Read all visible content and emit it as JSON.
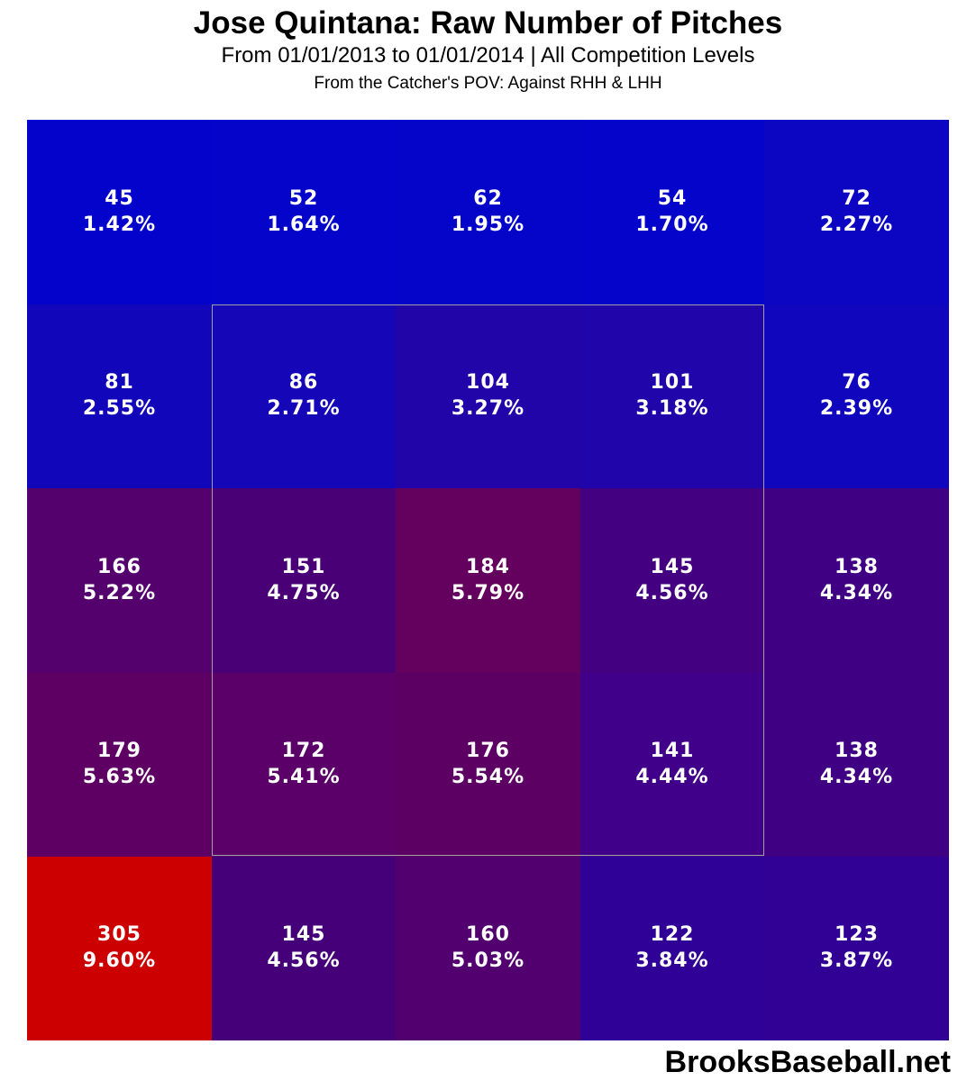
{
  "title": "Jose Quintana: Raw Number of Pitches",
  "subtitle": "From 01/01/2013 to 01/01/2014 | All Competition Levels",
  "subtitle2": "From the Catcher's POV:   Against RHH & LHH",
  "watermark": "BrooksBaseball.net",
  "chart_data": {
    "type": "heatmap",
    "rows": 5,
    "cols": 5,
    "strike_zone": "inner 3x3 cells outlined in gray",
    "cells": [
      [
        {
          "count": "45",
          "pct": "1.42%",
          "color": "#0303cc"
        },
        {
          "count": "52",
          "pct": "1.64%",
          "color": "#0404cb"
        },
        {
          "count": "62",
          "pct": "1.95%",
          "color": "#0505ca"
        },
        {
          "count": "54",
          "pct": "1.70%",
          "color": "#0404cb"
        },
        {
          "count": "72",
          "pct": "2.27%",
          "color": "#0c06c2"
        }
      ],
      [
        {
          "count": "81",
          "pct": "2.55%",
          "color": "#1206ba"
        },
        {
          "count": "86",
          "pct": "2.71%",
          "color": "#1506b8"
        },
        {
          "count": "104",
          "pct": "3.27%",
          "color": "#2205a8"
        },
        {
          "count": "101",
          "pct": "3.18%",
          "color": "#2005aa"
        },
        {
          "count": "76",
          "pct": "2.39%",
          "color": "#0f06bd"
        }
      ],
      [
        {
          "count": "166",
          "pct": "5.22%",
          "color": "#54016e"
        },
        {
          "count": "151",
          "pct": "4.75%",
          "color": "#490077"
        },
        {
          "count": "184",
          "pct": "5.79%",
          "color": "#64005e"
        },
        {
          "count": "145",
          "pct": "4.56%",
          "color": "#430080"
        },
        {
          "count": "138",
          "pct": "4.34%",
          "color": "#3f0083"
        }
      ],
      [
        {
          "count": "179",
          "pct": "5.63%",
          "color": "#5e0063"
        },
        {
          "count": "172",
          "pct": "5.41%",
          "color": "#5a0068"
        },
        {
          "count": "176",
          "pct": "5.54%",
          "color": "#5d0064"
        },
        {
          "count": "141",
          "pct": "4.44%",
          "color": "#41008a"
        },
        {
          "count": "138",
          "pct": "4.34%",
          "color": "#3f0083"
        }
      ],
      [
        {
          "count": "305",
          "pct": "9.60%",
          "color": "#cc0000"
        },
        {
          "count": "145",
          "pct": "4.56%",
          "color": "#450079"
        },
        {
          "count": "160",
          "pct": "5.03%",
          "color": "#520070"
        },
        {
          "count": "122",
          "pct": "3.84%",
          "color": "#2f0196"
        },
        {
          "count": "123",
          "pct": "3.87%",
          "color": "#300194"
        }
      ]
    ]
  }
}
